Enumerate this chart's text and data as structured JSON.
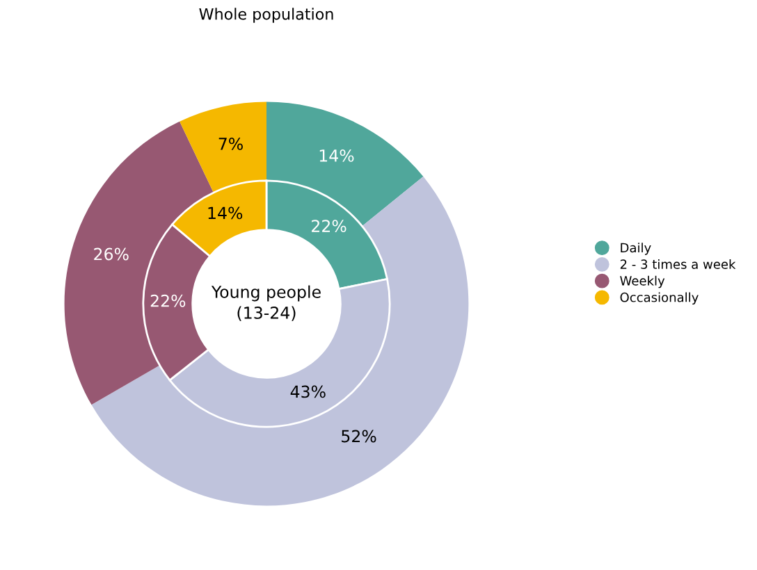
{
  "chart_data": {
    "type": "donut",
    "categories": [
      "Daily",
      "2 - 3 times a week",
      "Weekly",
      "Occasionally"
    ],
    "colors": [
      "#50a79b",
      "#bfc3dc",
      "#975872",
      "#f5b800"
    ],
    "series": [
      {
        "name": "Whole population",
        "values": [
          14,
          52,
          26,
          7
        ],
        "value_labels": [
          "14%",
          "52%",
          "26%",
          "7%"
        ]
      },
      {
        "name": "Young people\n(13-24)",
        "values": [
          22,
          43,
          22,
          14
        ],
        "value_labels": [
          "22%",
          "43%",
          "22%",
          "14%"
        ]
      }
    ],
    "legend": "right"
  }
}
